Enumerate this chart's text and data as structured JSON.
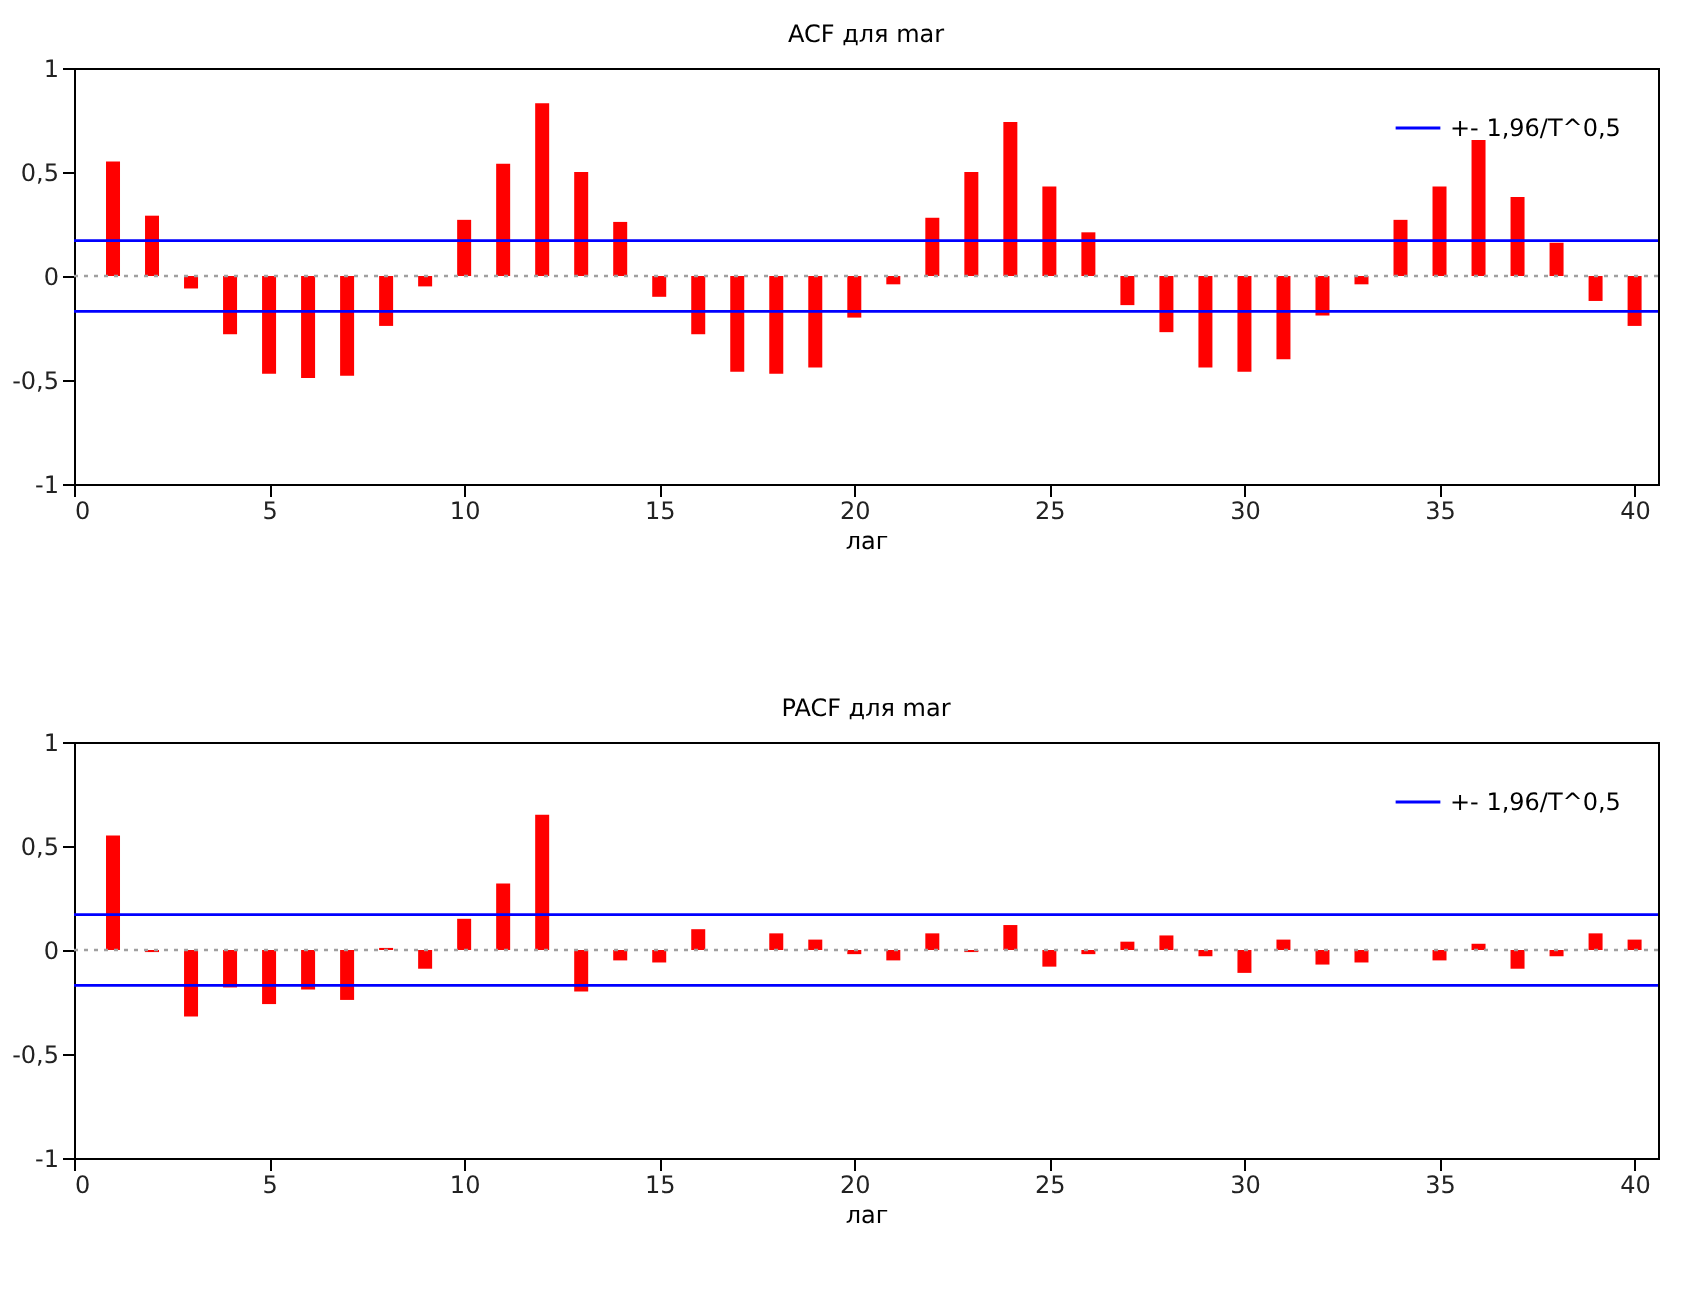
{
  "chart_data": [
    {
      "type": "bar",
      "title": "ACF для mar",
      "xlabel": "лаг",
      "x": [
        1,
        2,
        3,
        4,
        5,
        6,
        7,
        8,
        9,
        10,
        11,
        12,
        13,
        14,
        15,
        16,
        17,
        18,
        19,
        20,
        21,
        22,
        23,
        24,
        25,
        26,
        27,
        28,
        29,
        30,
        31,
        32,
        33,
        34,
        35,
        36,
        37,
        38,
        39,
        40
      ],
      "series": [
        {
          "color": "#ff0000",
          "values": [
            0.55,
            0.29,
            -0.06,
            -0.28,
            -0.47,
            -0.49,
            -0.48,
            -0.24,
            -0.05,
            0.27,
            0.54,
            0.83,
            0.5,
            0.26,
            -0.1,
            -0.28,
            -0.46,
            -0.47,
            -0.44,
            -0.2,
            -0.04,
            0.28,
            0.5,
            0.74,
            0.43,
            0.21,
            -0.14,
            -0.27,
            -0.44,
            -0.46,
            -0.4,
            -0.19,
            -0.04,
            0.27,
            0.43,
            0.66,
            0.38,
            0.16,
            -0.12,
            -0.24
          ]
        }
      ],
      "xlim": [
        0,
        40.6
      ],
      "xticks": [
        0,
        5,
        10,
        15,
        20,
        25,
        30,
        35,
        40
      ],
      "ylim": [
        -1,
        1
      ],
      "yticks": [
        {
          "value": -1,
          "label": "-1"
        },
        {
          "value": -0.5,
          "label": "-0,5"
        },
        {
          "value": 0,
          "label": "0"
        },
        {
          "value": 0.5,
          "label": "0,5"
        },
        {
          "value": 1,
          "label": "1"
        }
      ],
      "ref_lines": [
        {
          "axis": "y",
          "value": 0.17,
          "label": "+- 1,96/T^0,5",
          "color": "#0000ff"
        },
        {
          "axis": "y",
          "value": -0.17,
          "color": "#0000ff"
        },
        {
          "axis": "y",
          "value": 0,
          "color": "#a0a0a0",
          "line_style": "dotted"
        }
      ],
      "legend": "top right",
      "grid": false
    },
    {
      "type": "bar",
      "title": "PACF для mar",
      "xlabel": "лаг",
      "x": [
        1,
        2,
        3,
        4,
        5,
        6,
        7,
        8,
        9,
        10,
        11,
        12,
        13,
        14,
        15,
        16,
        17,
        18,
        19,
        20,
        21,
        22,
        23,
        24,
        25,
        26,
        27,
        28,
        29,
        30,
        31,
        32,
        33,
        34,
        35,
        36,
        37,
        38,
        39,
        40
      ],
      "series": [
        {
          "color": "#ff0000",
          "values": [
            0.55,
            -0.01,
            -0.32,
            -0.18,
            -0.26,
            -0.19,
            -0.24,
            0.01,
            -0.09,
            0.15,
            0.32,
            0.65,
            -0.2,
            -0.05,
            -0.06,
            0.1,
            0.0,
            0.08,
            0.05,
            -0.02,
            -0.05,
            0.08,
            -0.01,
            0.12,
            -0.08,
            -0.02,
            0.04,
            0.07,
            -0.03,
            -0.11,
            0.05,
            -0.07,
            -0.06,
            0.0,
            -0.05,
            0.03,
            -0.09,
            -0.03,
            0.08,
            0.05
          ]
        }
      ],
      "xlim": [
        0,
        40.6
      ],
      "xticks": [
        0,
        5,
        10,
        15,
        20,
        25,
        30,
        35,
        40
      ],
      "ylim": [
        -1,
        1
      ],
      "yticks": [
        {
          "value": -1,
          "label": "-1"
        },
        {
          "value": -0.5,
          "label": "-0,5"
        },
        {
          "value": 0,
          "label": "0"
        },
        {
          "value": 0.5,
          "label": "0,5"
        },
        {
          "value": 1,
          "label": "1"
        }
      ],
      "ref_lines": [
        {
          "axis": "y",
          "value": 0.17,
          "label": "+- 1,96/T^0,5",
          "color": "#0000ff"
        },
        {
          "axis": "y",
          "value": -0.17,
          "color": "#0000ff"
        },
        {
          "axis": "y",
          "value": 0,
          "color": "#a0a0a0",
          "line_style": "dotted"
        }
      ],
      "legend": "top right",
      "grid": false
    }
  ]
}
